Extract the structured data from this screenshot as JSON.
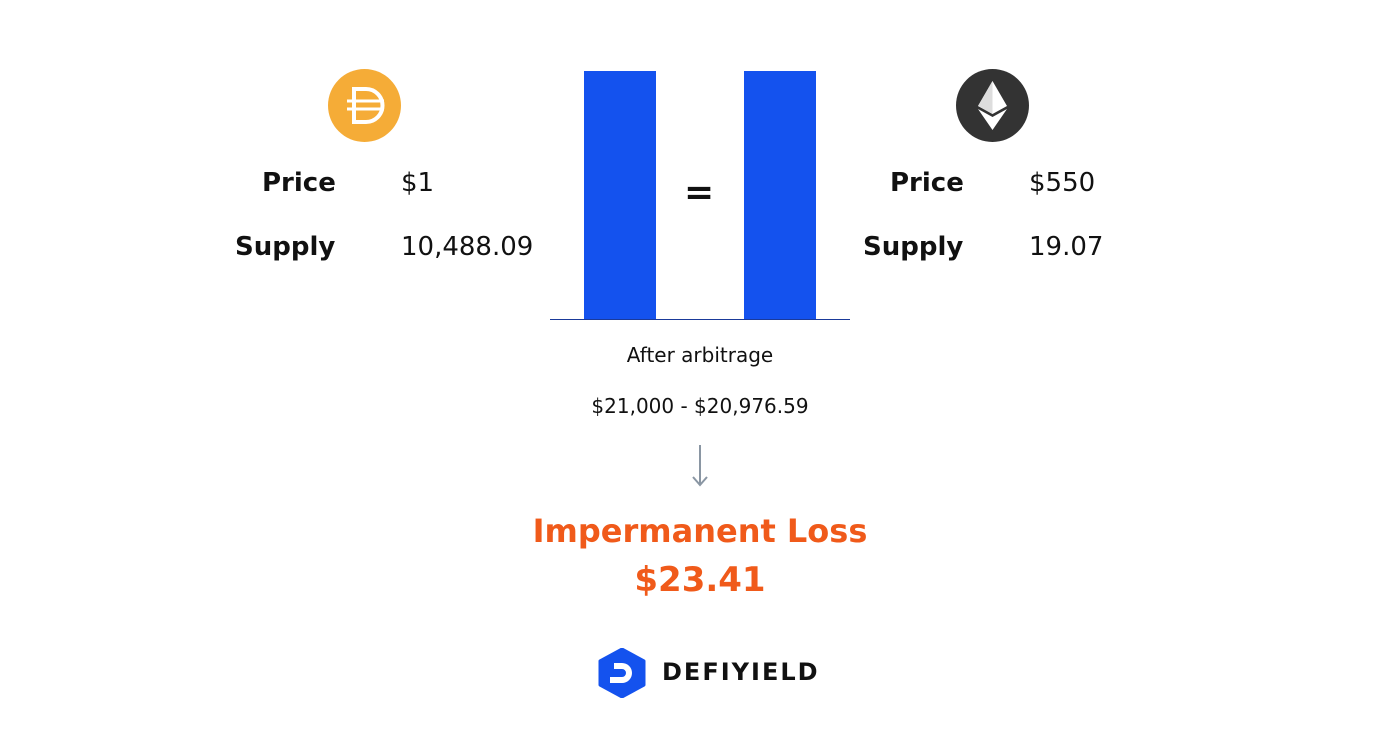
{
  "left_token": {
    "icon": "dai-icon",
    "color": "#f5ac37",
    "price_label": "Price",
    "price_value": "$1",
    "supply_label": "Supply",
    "supply_value": "10,488.09"
  },
  "right_token": {
    "icon": "eth-icon",
    "color": "#333333",
    "price_label": "Price",
    "price_value": "$550",
    "supply_label": "Supply",
    "supply_value": "19.07"
  },
  "pool": {
    "equals": "=",
    "bar_color": "#1452ee",
    "caption": "After arbitrage",
    "formula": "$21,000 - $20,976.59"
  },
  "result": {
    "title": "Impermanent Loss",
    "value": "$23.41",
    "color": "#f05a1a"
  },
  "brand": {
    "name": "DEFIYIELD",
    "logo_color": "#1452ee"
  }
}
